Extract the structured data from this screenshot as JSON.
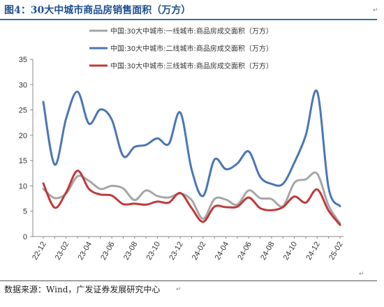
{
  "title": "图4：30大中城市商品房销售面积（万方）",
  "source": "数据来源：Wind，广发证券发展研究中心",
  "chart_data": {
    "type": "line",
    "title": "图4：30大中城市商品房销售面积（万方）",
    "xlabel": "",
    "ylabel": "",
    "ylim": [
      0,
      35
    ],
    "yticks": [
      0,
      5,
      10,
      15,
      20,
      25,
      30,
      35
    ],
    "x_tick_labels": [
      "22-12",
      "23-02",
      "23-04",
      "23-06",
      "23-08",
      "23-10",
      "23-12",
      "24-02",
      "24-04",
      "24-06",
      "24-08",
      "24-10",
      "24-12",
      "25-02"
    ],
    "grid": false,
    "legend": "top-center",
    "x": [
      "22-12",
      "23-01",
      "23-02",
      "23-03",
      "23-04",
      "23-05",
      "23-06",
      "23-07",
      "23-08",
      "23-09",
      "23-10",
      "23-11",
      "23-12",
      "24-01",
      "24-02",
      "24-03",
      "24-04",
      "24-05",
      "24-06",
      "24-07",
      "24-08",
      "24-09",
      "24-10",
      "24-11",
      "24-12",
      "25-01",
      "25-02"
    ],
    "series": [
      {
        "name": "中国:30大中城市:一线城市:商品房成交面积（万方）",
        "color": "#a6a6a6",
        "values": [
          9.4,
          7.6,
          8.5,
          11.9,
          11.0,
          9.4,
          10.0,
          9.5,
          7.2,
          9.1,
          8.0,
          7.7,
          8.5,
          7.2,
          3.5,
          7.4,
          7.3,
          6.3,
          9.1,
          7.6,
          7.4,
          6.0,
          10.6,
          11.3,
          12.4,
          6.1,
          2.6
        ]
      },
      {
        "name": "中国:30大中城市:二线城市:商品房成交面积（万方）",
        "color": "#4a76b8",
        "values": [
          26.6,
          14.2,
          23.3,
          28.6,
          22.3,
          25.1,
          23.1,
          15.9,
          17.7,
          18.1,
          19.4,
          18.3,
          24.5,
          13.2,
          8.0,
          15.2,
          13.3,
          14.4,
          16.8,
          11.8,
          10.4,
          10.4,
          14.6,
          20.0,
          28.6,
          9.6,
          6.0
        ]
      },
      {
        "name": "中国:30大中城市:三线城市:商品房成交面积（万方）",
        "color": "#c0393a",
        "values": [
          10.5,
          5.7,
          8.7,
          13.0,
          9.4,
          8.3,
          8.1,
          6.4,
          6.5,
          6.3,
          6.9,
          6.7,
          8.6,
          5.6,
          2.9,
          5.9,
          5.8,
          5.9,
          7.7,
          5.6,
          5.2,
          5.8,
          7.9,
          6.7,
          9.3,
          5.1,
          2.3
        ]
      }
    ]
  }
}
